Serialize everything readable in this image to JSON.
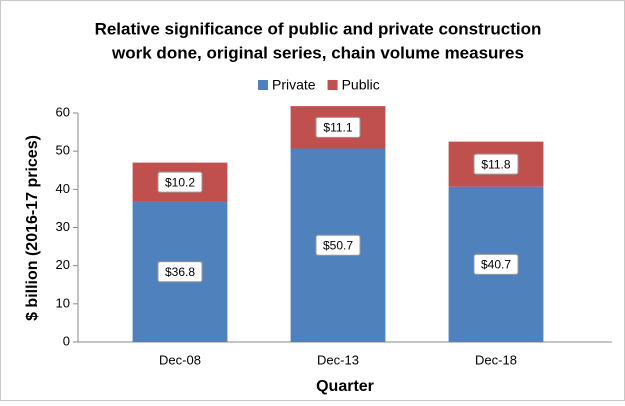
{
  "chart_data": {
    "type": "stacked_bar",
    "title": [
      "Relative significance of public and private construction",
      "work done, original series, chain volume measures"
    ],
    "categories": [
      "Dec-08",
      "Dec-13",
      "Dec-18"
    ],
    "series": [
      {
        "name": "Private",
        "color": "#4f81bd",
        "values": [
          36.8,
          50.7,
          40.7
        ],
        "value_labels": [
          "$36.8",
          "$50.7",
          "$40.7"
        ]
      },
      {
        "name": "Public",
        "color": "#c0504d",
        "values": [
          10.2,
          11.1,
          11.8
        ],
        "value_labels": [
          "$10.2",
          "$11.1",
          "$11.8"
        ]
      }
    ],
    "ylim": [
      0,
      60
    ],
    "yticks": [
      0,
      10,
      20,
      30,
      40,
      50,
      60
    ],
    "y_label": "$ billion (2016-17 prices)",
    "x_label": "Quarter",
    "legend": "top",
    "grid": false
  }
}
